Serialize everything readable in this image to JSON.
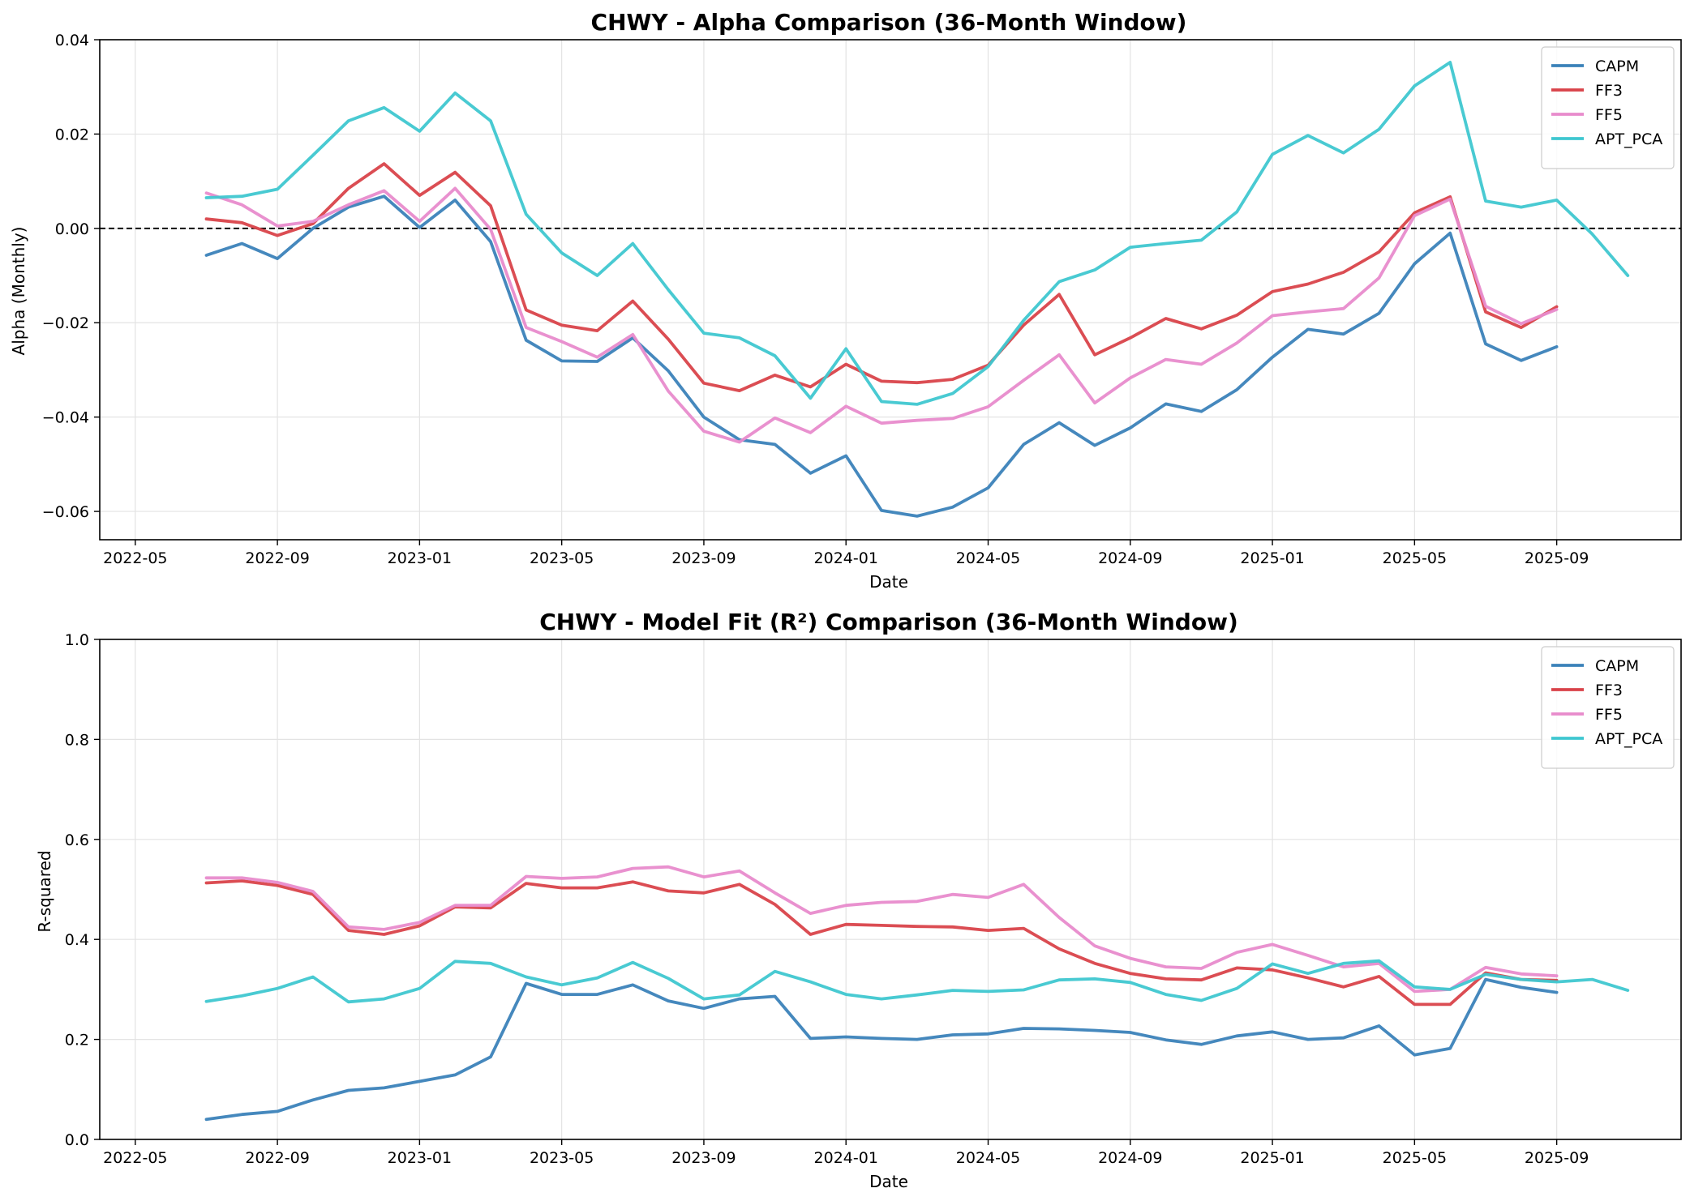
{
  "chart_data": [
    {
      "type": "line",
      "title": "CHWY - Alpha Comparison (36-Month Window)",
      "xlabel": "Date",
      "ylabel": "Alpha (Monthly)",
      "ylim": [
        -0.066,
        0.04
      ],
      "yticks": [
        -0.06,
        -0.04,
        -0.02,
        0.0,
        0.02,
        0.04
      ],
      "ytick_labels": [
        "−0.06",
        "−0.04",
        "−0.02",
        "0.00",
        "0.02",
        "0.04"
      ],
      "xlim_months": [
        -1,
        43.5
      ],
      "xticks_months": [
        0,
        4,
        8,
        12,
        16,
        20,
        24,
        28,
        32,
        36,
        40
      ],
      "xtick_labels": [
        "2022-05",
        "2022-09",
        "2023-01",
        "2023-05",
        "2023-09",
        "2024-01",
        "2024-05",
        "2024-09",
        "2025-01",
        "2025-05",
        "2025-09"
      ],
      "x_months": [
        2,
        3,
        4,
        5,
        6,
        7,
        8,
        9,
        10,
        11,
        12,
        13,
        14,
        15,
        16,
        17,
        18,
        19,
        20,
        21,
        22,
        23,
        24,
        25,
        26,
        27,
        28,
        29,
        30,
        31,
        32,
        33,
        34,
        35,
        36,
        37,
        38,
        39,
        40,
        41,
        42
      ],
      "reference_line": 0.0,
      "grid": true,
      "legend_position": "top-right",
      "series": [
        {
          "name": "CAPM",
          "color": "#3b82b9",
          "values": [
            -0.0057,
            -0.0032,
            -0.0064,
            0.0,
            0.0045,
            0.0068,
            0.0002,
            0.006,
            -0.0028,
            -0.0237,
            -0.0281,
            -0.0282,
            -0.0232,
            -0.0302,
            -0.04,
            -0.0448,
            -0.0458,
            -0.0519,
            -0.0482,
            -0.0598,
            -0.061,
            -0.0591,
            -0.055,
            -0.0458,
            -0.0412,
            -0.046,
            -0.0423,
            -0.0372,
            -0.0388,
            -0.0342,
            -0.0273,
            -0.0214,
            -0.0224,
            -0.018,
            -0.0075,
            -0.001,
            -0.0245,
            -0.028,
            -0.0251,
            null,
            null
          ]
        },
        {
          "name": "FF3",
          "color": "#d9434a",
          "values": [
            0.002,
            0.0012,
            -0.0015,
            0.001,
            0.0085,
            0.0137,
            0.007,
            0.0119,
            0.0048,
            -0.0173,
            -0.0205,
            -0.0217,
            -0.0154,
            -0.0235,
            -0.0328,
            -0.0344,
            -0.0311,
            -0.0336,
            -0.0288,
            -0.0324,
            -0.0327,
            -0.032,
            -0.029,
            -0.0205,
            -0.014,
            -0.0268,
            -0.0232,
            -0.0191,
            -0.0213,
            -0.0184,
            -0.0134,
            -0.0118,
            -0.0093,
            -0.005,
            0.0033,
            0.0067,
            -0.0177,
            -0.021,
            -0.0166,
            null,
            null
          ]
        },
        {
          "name": "FF5",
          "color": "#e88bcc",
          "values": [
            0.0075,
            0.005,
            0.0005,
            0.0015,
            0.005,
            0.008,
            0.0015,
            0.0085,
            -0.0002,
            -0.021,
            -0.024,
            -0.0273,
            -0.0225,
            -0.0345,
            -0.043,
            -0.0453,
            -0.0402,
            -0.0433,
            -0.0377,
            -0.0413,
            -0.0407,
            -0.0403,
            -0.0378,
            -0.0322,
            -0.0268,
            -0.037,
            -0.0317,
            -0.0278,
            -0.0288,
            -0.0243,
            -0.0185,
            -0.0177,
            -0.017,
            -0.0105,
            0.0027,
            0.0062,
            -0.0165,
            -0.0202,
            -0.0172,
            null,
            null
          ]
        },
        {
          "name": "APT_PCA",
          "color": "#3fc7d0",
          "values": [
            0.0065,
            0.0068,
            0.0083,
            0.0155,
            0.0228,
            0.0256,
            0.0206,
            0.0287,
            0.0228,
            0.003,
            -0.0052,
            -0.01,
            -0.0032,
            -0.013,
            -0.0222,
            -0.0232,
            -0.027,
            -0.036,
            -0.0255,
            -0.0367,
            -0.0373,
            -0.035,
            -0.0293,
            -0.0195,
            -0.0113,
            -0.0088,
            -0.004,
            -0.0032,
            -0.0025,
            0.0035,
            0.0157,
            0.0197,
            0.016,
            0.021,
            0.0302,
            0.0352,
            0.0058,
            0.0045,
            0.006,
            -0.0012,
            -0.01
          ]
        }
      ]
    },
    {
      "type": "line",
      "title": "CHWY - Model Fit (R²) Comparison (36-Month Window)",
      "xlabel": "Date",
      "ylabel": "R-squared",
      "ylim": [
        0.0,
        1.0
      ],
      "yticks": [
        0.0,
        0.2,
        0.4,
        0.6,
        0.8,
        1.0
      ],
      "ytick_labels": [
        "0.0",
        "0.2",
        "0.4",
        "0.6",
        "0.8",
        "1.0"
      ],
      "xlim_months": [
        -1,
        43.5
      ],
      "xticks_months": [
        0,
        4,
        8,
        12,
        16,
        20,
        24,
        28,
        32,
        36,
        40
      ],
      "xtick_labels": [
        "2022-05",
        "2022-09",
        "2023-01",
        "2023-05",
        "2023-09",
        "2024-01",
        "2024-05",
        "2024-09",
        "2025-01",
        "2025-05",
        "2025-09"
      ],
      "x_months": [
        2,
        3,
        4,
        5,
        6,
        7,
        8,
        9,
        10,
        11,
        12,
        13,
        14,
        15,
        16,
        17,
        18,
        19,
        20,
        21,
        22,
        23,
        24,
        25,
        26,
        27,
        28,
        29,
        30,
        31,
        32,
        33,
        34,
        35,
        36,
        37,
        38,
        39,
        40,
        41,
        42
      ],
      "grid": true,
      "legend_position": "top-right",
      "series": [
        {
          "name": "CAPM",
          "color": "#3b82b9",
          "values": [
            0.04,
            0.05,
            0.056,
            0.079,
            0.098,
            0.103,
            0.116,
            0.129,
            0.165,
            0.312,
            0.29,
            0.29,
            0.309,
            0.277,
            0.262,
            0.281,
            0.286,
            0.202,
            0.205,
            0.202,
            0.2,
            0.209,
            0.211,
            0.222,
            0.221,
            0.218,
            0.214,
            0.199,
            0.19,
            0.207,
            0.215,
            0.2,
            0.203,
            0.227,
            0.169,
            0.182,
            0.32,
            0.304,
            0.294,
            null,
            null
          ]
        },
        {
          "name": "FF3",
          "color": "#d9434a",
          "values": [
            0.513,
            0.517,
            0.508,
            0.49,
            0.418,
            0.41,
            0.427,
            0.465,
            0.463,
            0.512,
            0.503,
            0.503,
            0.515,
            0.497,
            0.493,
            0.51,
            0.47,
            0.41,
            0.43,
            0.428,
            0.426,
            0.425,
            0.418,
            0.422,
            0.381,
            0.352,
            0.332,
            0.321,
            0.319,
            0.343,
            0.339,
            0.323,
            0.305,
            0.326,
            0.27,
            0.27,
            0.333,
            0.32,
            0.318,
            null,
            null
          ]
        },
        {
          "name": "FF5",
          "color": "#e88bcc",
          "values": [
            0.523,
            0.523,
            0.514,
            0.496,
            0.425,
            0.42,
            0.434,
            0.468,
            0.468,
            0.526,
            0.522,
            0.525,
            0.542,
            0.545,
            0.525,
            0.537,
            0.493,
            0.452,
            0.468,
            0.474,
            0.476,
            0.49,
            0.484,
            0.51,
            0.444,
            0.387,
            0.362,
            0.345,
            0.342,
            0.374,
            0.39,
            0.368,
            0.345,
            0.352,
            0.296,
            0.3,
            0.344,
            0.331,
            0.327,
            null,
            null
          ]
        },
        {
          "name": "APT_PCA",
          "color": "#3fc7d0",
          "values": [
            0.276,
            0.287,
            0.302,
            0.325,
            0.275,
            0.281,
            0.302,
            0.356,
            0.352,
            0.325,
            0.309,
            0.323,
            0.354,
            0.322,
            0.281,
            0.289,
            0.336,
            0.315,
            0.29,
            0.281,
            0.289,
            0.298,
            0.296,
            0.299,
            0.319,
            0.321,
            0.314,
            0.29,
            0.278,
            0.302,
            0.351,
            0.332,
            0.352,
            0.357,
            0.305,
            0.3,
            0.33,
            0.32,
            0.315,
            0.32,
            0.298
          ]
        }
      ]
    }
  ]
}
